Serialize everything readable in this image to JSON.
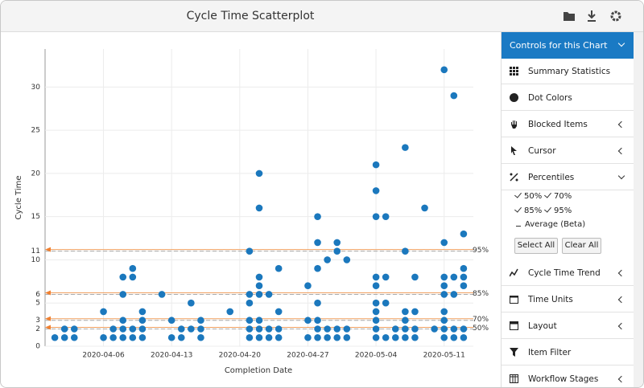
{
  "header": {
    "title": "Cycle Time Scatterplot"
  },
  "chart_data": {
    "type": "scatter",
    "xlabel": "Completion Date",
    "ylabel": "Cycle Time",
    "color": "#1b78bd",
    "grid": true,
    "xlim": [
      "2020-03-31",
      "2020-05-14"
    ],
    "xticks": [
      "2020-04-06",
      "2020-04-13",
      "2020-04-20",
      "2020-04-27",
      "2020-05-04",
      "2020-05-11"
    ],
    "ylim": [
      0,
      34.4
    ],
    "yticks": [
      0,
      2,
      3,
      5,
      6,
      10,
      11,
      15,
      20,
      25,
      30
    ],
    "percentiles": [
      {
        "label": "95%",
        "value": 11
      },
      {
        "label": "85%",
        "value": 6
      },
      {
        "label": "70%",
        "value": 3
      },
      {
        "label": "50%",
        "value": 2
      }
    ],
    "x": [
      "2020-04-01",
      "2020-04-02",
      "2020-04-02",
      "2020-04-03",
      "2020-04-03",
      "2020-04-06",
      "2020-04-06",
      "2020-04-07",
      "2020-04-07",
      "2020-04-08",
      "2020-04-08",
      "2020-04-08",
      "2020-04-08",
      "2020-04-08",
      "2020-04-09",
      "2020-04-09",
      "2020-04-09",
      "2020-04-09",
      "2020-04-10",
      "2020-04-10",
      "2020-04-10",
      "2020-04-10",
      "2020-04-12",
      "2020-04-13",
      "2020-04-13",
      "2020-04-14",
      "2020-04-14",
      "2020-04-15",
      "2020-04-15",
      "2020-04-16",
      "2020-04-16",
      "2020-04-16",
      "2020-04-19",
      "2020-04-21",
      "2020-04-21",
      "2020-04-21",
      "2020-04-21",
      "2020-04-21",
      "2020-04-21",
      "2020-04-22",
      "2020-04-22",
      "2020-04-22",
      "2020-04-22",
      "2020-04-22",
      "2020-04-22",
      "2020-04-22",
      "2020-04-22",
      "2020-04-23",
      "2020-04-23",
      "2020-04-23",
      "2020-04-24",
      "2020-04-24",
      "2020-04-24",
      "2020-04-24",
      "2020-04-27",
      "2020-04-27",
      "2020-04-27",
      "2020-04-28",
      "2020-04-28",
      "2020-04-28",
      "2020-04-28",
      "2020-04-28",
      "2020-04-28",
      "2020-04-28",
      "2020-04-29",
      "2020-04-29",
      "2020-04-29",
      "2020-04-30",
      "2020-04-30",
      "2020-04-30",
      "2020-04-30",
      "2020-05-01",
      "2020-05-01",
      "2020-05-01",
      "2020-05-04",
      "2020-05-04",
      "2020-05-04",
      "2020-05-04",
      "2020-05-04",
      "2020-05-04",
      "2020-05-04",
      "2020-05-04",
      "2020-05-04",
      "2020-05-04",
      "2020-05-05",
      "2020-05-05",
      "2020-05-05",
      "2020-05-05",
      "2020-05-06",
      "2020-05-06",
      "2020-05-07",
      "2020-05-07",
      "2020-05-07",
      "2020-05-07",
      "2020-05-07",
      "2020-05-07",
      "2020-05-08",
      "2020-05-08",
      "2020-05-08",
      "2020-05-08",
      "2020-05-09",
      "2020-05-10",
      "2020-05-11",
      "2020-05-11",
      "2020-05-11",
      "2020-05-11",
      "2020-05-11",
      "2020-05-11",
      "2020-05-11",
      "2020-05-11",
      "2020-05-11",
      "2020-05-12",
      "2020-05-12",
      "2020-05-12",
      "2020-05-12",
      "2020-05-12",
      "2020-05-13",
      "2020-05-13",
      "2020-05-13",
      "2020-05-13",
      "2020-05-13",
      "2020-05-13"
    ],
    "values": [
      1,
      1,
      2,
      1,
      2,
      1,
      4,
      1,
      2,
      1,
      2,
      3,
      6,
      8,
      1,
      2,
      8,
      9,
      1,
      2,
      3,
      4,
      6,
      1,
      3,
      1,
      2,
      2,
      5,
      1,
      2,
      3,
      4,
      1,
      2,
      3,
      5,
      6,
      11,
      1,
      2,
      3,
      6,
      7,
      8,
      16,
      20,
      1,
      2,
      6,
      1,
      2,
      4,
      9,
      1,
      3,
      7,
      1,
      2,
      3,
      5,
      9,
      12,
      15,
      1,
      2,
      10,
      1,
      2,
      11,
      12,
      1,
      2,
      10,
      1,
      2,
      3,
      4,
      5,
      7,
      8,
      15,
      18,
      21,
      1,
      5,
      8,
      15,
      1,
      2,
      1,
      2,
      3,
      4,
      11,
      23,
      1,
      2,
      4,
      8,
      16,
      2,
      1,
      2,
      3,
      4,
      6,
      7,
      8,
      12,
      32,
      1,
      2,
      6,
      8,
      29,
      1,
      2,
      7,
      8,
      9,
      13
    ]
  },
  "sidebar": {
    "header": "Controls for this Chart",
    "items": [
      "Summary Statistics",
      "Dot Colors",
      "Blocked Items",
      "Cursor",
      "Percentiles"
    ],
    "percentile_options": [
      "50%",
      "70%",
      "85%",
      "95%",
      "Average (Beta)"
    ],
    "buttons": [
      "Select All",
      "Clear All"
    ],
    "items_after": [
      "Cycle Time Trend",
      "Time Units",
      "Layout",
      "Item Filter",
      "Workflow Stages"
    ]
  }
}
